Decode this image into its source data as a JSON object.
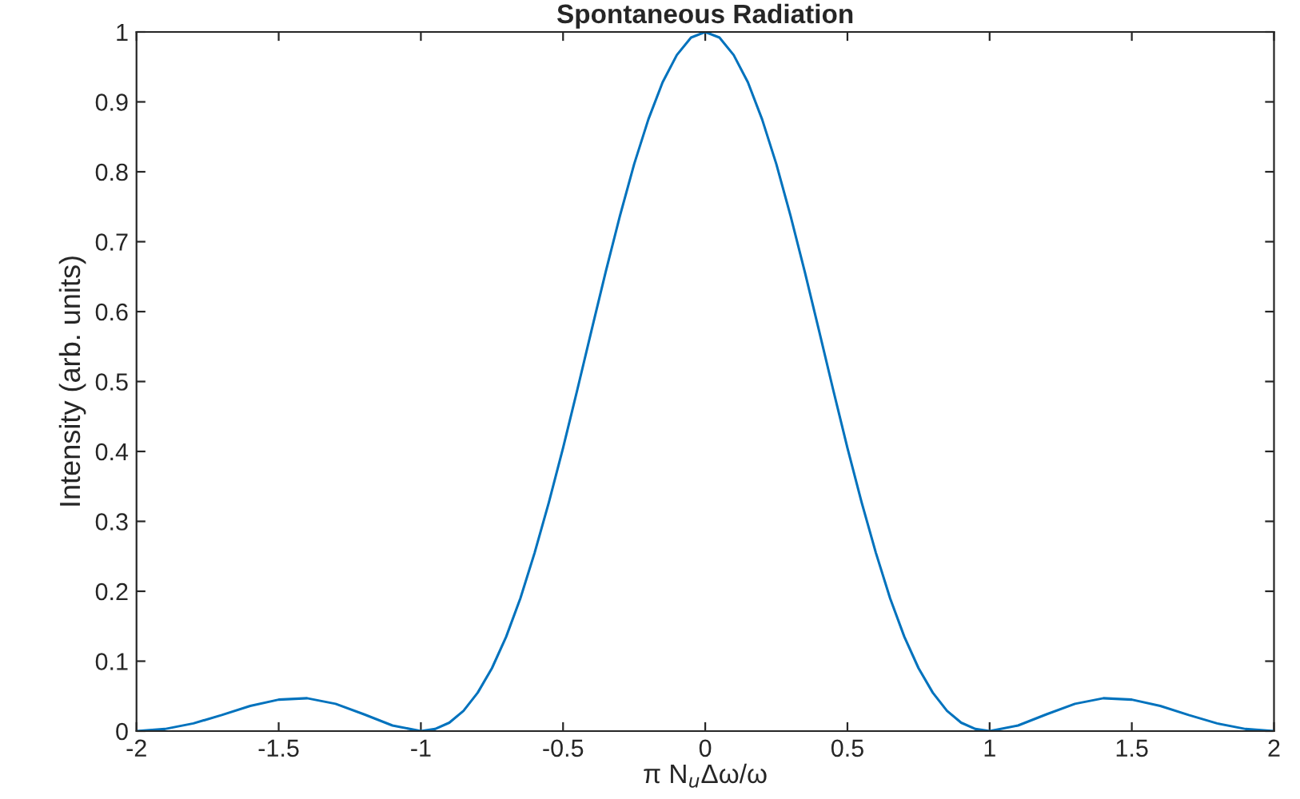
{
  "chart_data": {
    "type": "line",
    "title": "Spontaneous Radiation",
    "xlabel": "π N$_{u}$Δω/ω",
    "ylabel": "Intensity (arb. units)",
    "x": [
      -2,
      -1.9,
      -1.8,
      -1.7,
      -1.6,
      -1.5,
      -1.4,
      -1.3,
      -1.2,
      -1.1,
      -1,
      -0.95,
      -0.9,
      -0.85,
      -0.8,
      -0.75,
      -0.7,
      -0.65,
      -0.6,
      -0.55,
      -0.5,
      -0.45,
      -0.4,
      -0.35,
      -0.3,
      -0.25,
      -0.2,
      -0.15,
      -0.1,
      -0.05,
      0,
      0.05,
      0.1,
      0.15,
      0.2,
      0.25,
      0.3,
      0.35,
      0.4,
      0.45,
      0.5,
      0.55,
      0.6,
      0.65,
      0.7,
      0.75,
      0.8,
      0.85,
      0.9,
      0.95,
      1,
      1.1,
      1.2,
      1.3,
      1.4,
      1.5,
      1.6,
      1.7,
      1.8,
      1.9,
      2
    ],
    "series": [
      {
        "color": "#0072bd",
        "values": [
          0,
          0.003,
          0.011,
          0.023,
          0.036,
          0.045,
          0.047,
          0.039,
          0.024,
          0.008,
          0,
          0.003,
          0.012,
          0.029,
          0.055,
          0.09,
          0.135,
          0.19,
          0.255,
          0.327,
          0.405,
          0.488,
          0.573,
          0.657,
          0.737,
          0.811,
          0.875,
          0.928,
          0.967,
          0.992,
          1,
          0.992,
          0.967,
          0.928,
          0.875,
          0.811,
          0.737,
          0.657,
          0.573,
          0.488,
          0.405,
          0.327,
          0.255,
          0.19,
          0.135,
          0.09,
          0.055,
          0.029,
          0.012,
          0.003,
          0,
          0.008,
          0.024,
          0.039,
          0.047,
          0.045,
          0.036,
          0.023,
          0.011,
          0.003,
          0
        ]
      }
    ],
    "xlim": [
      -2,
      2
    ],
    "xticks": [
      -2,
      -1.5,
      -1,
      -0.5,
      0,
      0.5,
      1,
      1.5,
      2
    ],
    "ylim": [
      0,
      1
    ],
    "yticks": [
      0,
      0.1,
      0.2,
      0.3,
      0.4,
      0.5,
      0.6,
      0.7,
      0.8,
      0.9,
      1
    ]
  }
}
